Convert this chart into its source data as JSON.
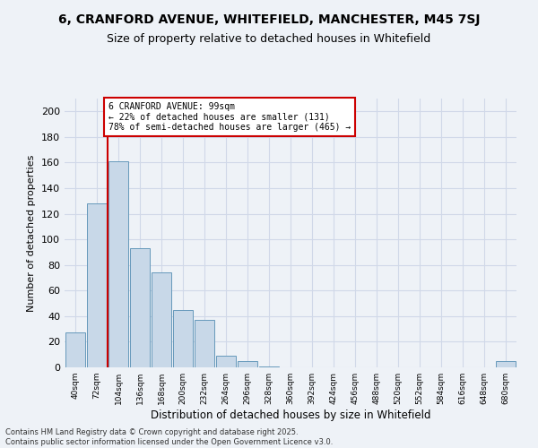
{
  "title": "6, CRANFORD AVENUE, WHITEFIELD, MANCHESTER, M45 7SJ",
  "subtitle": "Size of property relative to detached houses in Whitefield",
  "xlabel": "Distribution of detached houses by size in Whitefield",
  "ylabel": "Number of detached properties",
  "footer_line1": "Contains HM Land Registry data © Crown copyright and database right 2025.",
  "footer_line2": "Contains public sector information licensed under the Open Government Licence v3.0.",
  "categories": [
    "40sqm",
    "72sqm",
    "104sqm",
    "136sqm",
    "168sqm",
    "200sqm",
    "232sqm",
    "264sqm",
    "296sqm",
    "328sqm",
    "360sqm",
    "392sqm",
    "424sqm",
    "456sqm",
    "488sqm",
    "520sqm",
    "552sqm",
    "584sqm",
    "616sqm",
    "648sqm",
    "680sqm"
  ],
  "values": [
    27,
    128,
    161,
    93,
    74,
    45,
    37,
    9,
    5,
    1,
    0,
    0,
    0,
    0,
    0,
    0,
    0,
    0,
    0,
    0,
    5
  ],
  "bar_color": "#c8d8e8",
  "bar_edge_color": "#6699bb",
  "property_line_color": "#cc0000",
  "annotation_line1": "6 CRANFORD AVENUE: 99sqm",
  "annotation_line2": "← 22% of detached houses are smaller (131)",
  "annotation_line3": "78% of semi-detached houses are larger (465) →",
  "annotation_box_color": "#cc0000",
  "ylim": [
    0,
    210
  ],
  "yticks": [
    0,
    20,
    40,
    60,
    80,
    100,
    120,
    140,
    160,
    180,
    200
  ],
  "bg_color": "#eef2f7",
  "grid_color": "#d0d8e8",
  "title_fontsize": 10,
  "subtitle_fontsize": 9,
  "line_x_index": 2.0
}
